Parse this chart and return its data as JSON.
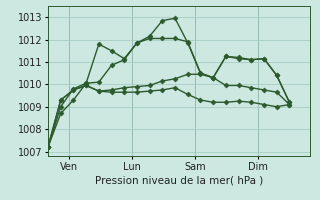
{
  "background_color": "#cce8e0",
  "grid_color": "#a8ccc4",
  "line_color": "#2d5a2d",
  "marker": "D",
  "markersize": 2.5,
  "linewidth": 1.0,
  "xlabel": "Pression niveau de la mer( hPa )",
  "ylim": [
    1006.8,
    1013.5
  ],
  "yticks": [
    1007,
    1008,
    1009,
    1010,
    1011,
    1012,
    1013
  ],
  "xtick_labels": [
    "Ven",
    "Lun",
    "Sam",
    "Dim"
  ],
  "xtick_positions": [
    1,
    4,
    7,
    10
  ],
  "vline_positions": [
    1,
    4,
    7,
    10
  ],
  "xlim": [
    0,
    12.5
  ],
  "series": [
    [
      1007.2,
      1008.7,
      1009.3,
      1010.05,
      1011.8,
      1011.5,
      1011.15,
      1011.85,
      1012.05,
      1012.05,
      1012.05,
      1011.9,
      1010.5,
      1010.3,
      1011.25,
      1011.15,
      1011.1,
      1011.15,
      1010.4,
      1009.2
    ],
    [
      1007.2,
      1009.0,
      1009.8,
      1010.05,
      1010.1,
      1010.85,
      1011.1,
      1011.85,
      1012.15,
      1012.85,
      1012.95,
      1011.85,
      1010.5,
      1010.3,
      1011.25,
      1011.2,
      1011.1,
      1011.15,
      1010.4,
      1009.2
    ],
    [
      1007.2,
      1009.3,
      1009.75,
      1009.95,
      1009.7,
      1009.65,
      1009.65,
      1009.65,
      1009.7,
      1009.75,
      1009.85,
      1009.55,
      1009.3,
      1009.2,
      1009.2,
      1009.25,
      1009.2,
      1009.1,
      1009.0,
      1009.1
    ],
    [
      1007.2,
      1009.3,
      1009.75,
      1009.95,
      1009.7,
      1009.75,
      1009.85,
      1009.9,
      1009.95,
      1010.15,
      1010.25,
      1010.45,
      1010.45,
      1010.3,
      1009.95,
      1009.95,
      1009.85,
      1009.75,
      1009.65,
      1009.1
    ]
  ],
  "n_points": 20,
  "x_start": 0.0,
  "x_end": 11.5,
  "tick_fontsize": 7,
  "xlabel_fontsize": 7.5,
  "tick_color": "#222222",
  "spine_color": "#2d5a2d",
  "figsize": [
    3.2,
    2.0
  ],
  "dpi": 100
}
